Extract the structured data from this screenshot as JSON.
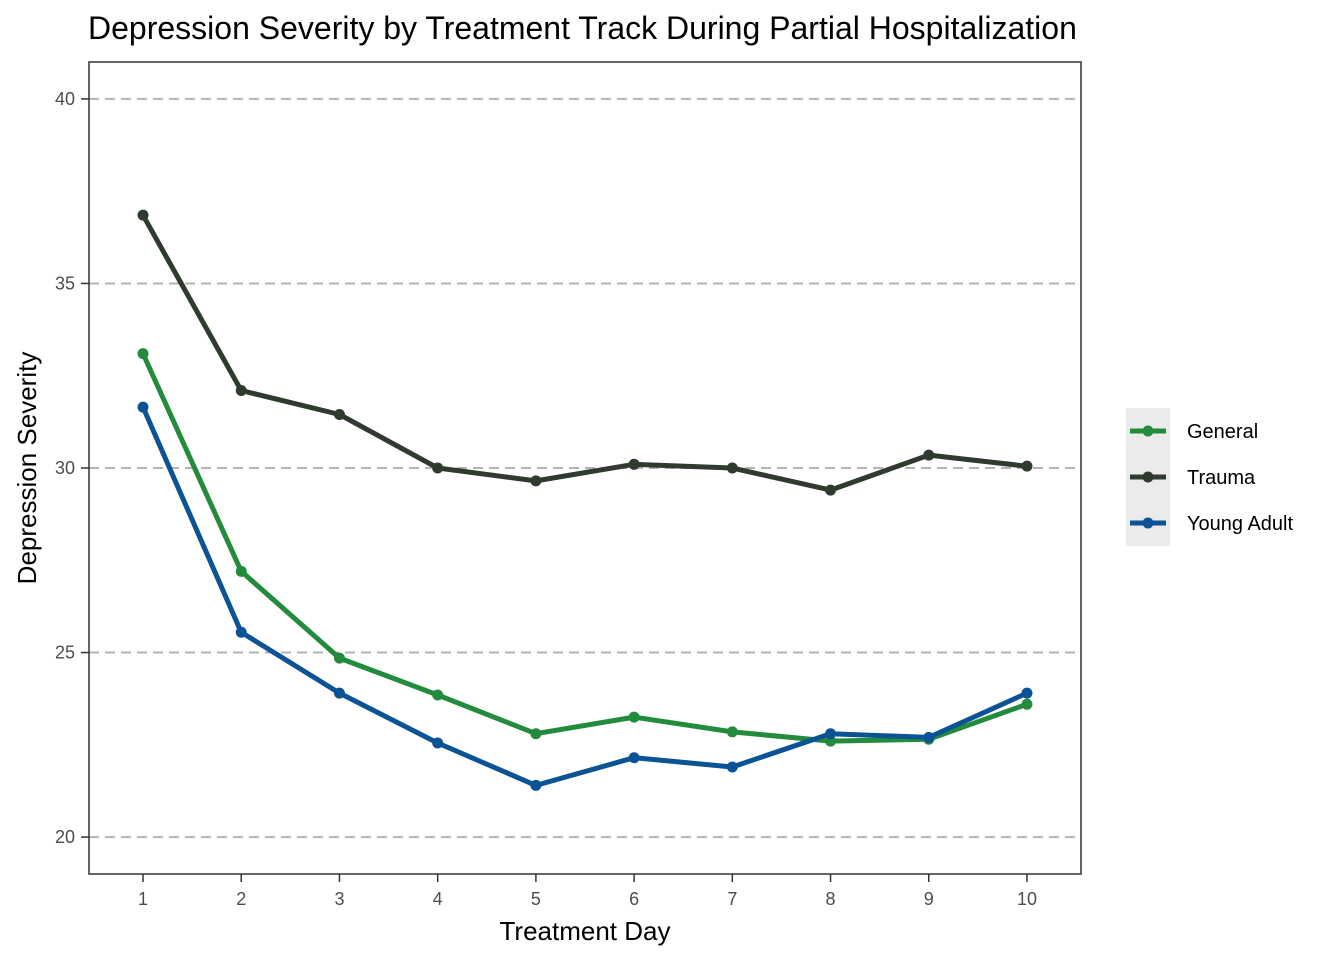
{
  "chart_data": {
    "type": "line",
    "title": "Depression Severity by Treatment Track During Partial Hospitalization",
    "xlabel": "Treatment Day",
    "ylabel": "Depression Severity",
    "x": [
      1,
      2,
      3,
      4,
      5,
      6,
      7,
      8,
      9,
      10
    ],
    "x_tick_labels": [
      "1",
      "2",
      "3",
      "4",
      "5",
      "6",
      "7",
      "8",
      "9",
      "10"
    ],
    "y_ticks": [
      20,
      25,
      30,
      35,
      40
    ],
    "y_tick_labels": [
      "20",
      "25",
      "30",
      "35",
      "40"
    ],
    "xlim": [
      0.45,
      10.55
    ],
    "ylim": [
      19.0,
      41.0
    ],
    "grid": "horizontal dashed",
    "legend_position": "right",
    "series": [
      {
        "name": "General",
        "color": "#228b3c",
        "values": [
          33.1,
          27.2,
          24.85,
          23.85,
          22.8,
          23.25,
          22.85,
          22.6,
          22.65,
          23.6
        ]
      },
      {
        "name": "Trauma",
        "color": "#2f3b2f",
        "values": [
          36.85,
          32.1,
          31.45,
          30.0,
          29.65,
          30.1,
          30.0,
          29.4,
          30.35,
          30.05
        ]
      },
      {
        "name": "Young Adult",
        "color": "#0b5394",
        "values": [
          31.65,
          25.55,
          23.9,
          22.55,
          21.4,
          22.15,
          21.9,
          22.8,
          22.7,
          23.9
        ]
      }
    ]
  }
}
